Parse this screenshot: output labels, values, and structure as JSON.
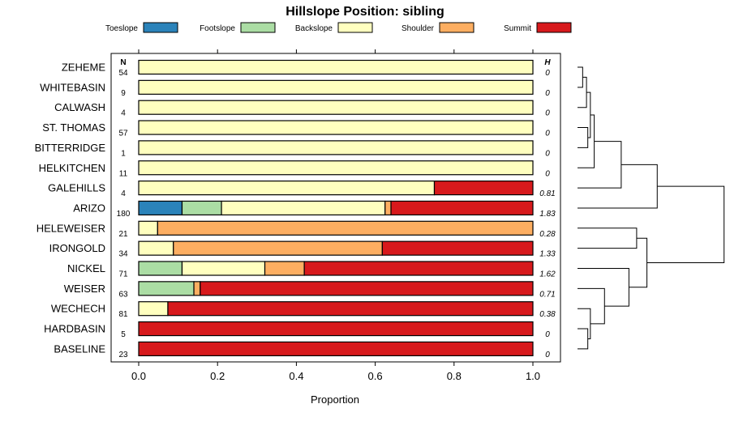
{
  "chart_data": {
    "type": "bar",
    "stacked": true,
    "orientation": "horizontal",
    "title": "Hillslope Position: sibling",
    "xlabel": "Proportion",
    "xlim": [
      0,
      1
    ],
    "xticks": [
      "0.0",
      "0.2",
      "0.4",
      "0.6",
      "0.8",
      "1.0"
    ],
    "n_header": "N",
    "h_header": "H",
    "legend": [
      {
        "name": "Toeslope",
        "color": "#2b83ba"
      },
      {
        "name": "Footslope",
        "color": "#abdda4"
      },
      {
        "name": "Backslope",
        "color": "#ffffbf"
      },
      {
        "name": "Shoulder",
        "color": "#fdae61"
      },
      {
        "name": "Summit",
        "color": "#d7191c"
      }
    ],
    "categories": [
      "ZEHEME",
      "WHITEBASIN",
      "CALWASH",
      "ST. THOMAS",
      "BITTERRIDGE",
      "HELKITCHEN",
      "GALEHILLS",
      "ARIZO",
      "HELEWEISER",
      "IRONGOLD",
      "NICKEL",
      "WEISER",
      "WECHECH",
      "HARDBASIN",
      "BASELINE"
    ],
    "n": [
      "54",
      "9",
      "4",
      "57",
      "1",
      "11",
      "4",
      "180",
      "21",
      "34",
      "71",
      "63",
      "81",
      "5",
      "23"
    ],
    "h": [
      "0",
      "0",
      "0",
      "0",
      "0",
      "0",
      "0.81",
      "1.83",
      "0.28",
      "1.33",
      "1.62",
      "0.71",
      "0.38",
      "0",
      "0"
    ],
    "series": [
      {
        "name": "Toeslope",
        "values": [
          0,
          0,
          0,
          0,
          0,
          0,
          0,
          0.11,
          0,
          0,
          0,
          0,
          0,
          0,
          0
        ]
      },
      {
        "name": "Footslope",
        "values": [
          0,
          0,
          0,
          0,
          0,
          0,
          0,
          0.1,
          0,
          0,
          0.11,
          0.14,
          0,
          0,
          0
        ]
      },
      {
        "name": "Backslope",
        "values": [
          1,
          1,
          1,
          1,
          1,
          1,
          0.75,
          0.415,
          0.048,
          0.088,
          0.21,
          0,
          0.074,
          0,
          0
        ]
      },
      {
        "name": "Shoulder",
        "values": [
          0,
          0,
          0,
          0,
          0,
          0,
          0,
          0.015,
          0.952,
          0.53,
          0.1,
          0.016,
          0,
          0,
          0
        ]
      },
      {
        "name": "Summit",
        "values": [
          0,
          0,
          0,
          0,
          0,
          0,
          0.25,
          0.36,
          0,
          0.382,
          0.58,
          0.844,
          0.926,
          1,
          1
        ]
      }
    ],
    "dendrogram": {
      "merges": [
        [
          -1,
          -2
        ],
        [
          -3,
          1
        ],
        [
          -4,
          -5
        ],
        [
          3,
          2
        ],
        [
          -6,
          4
        ],
        [
          -7,
          5
        ],
        [
          -8,
          6
        ],
        [
          -9,
          -10
        ],
        [
          -14,
          -15
        ],
        [
          -13,
          9
        ],
        [
          -12,
          10
        ],
        [
          -11,
          11
        ],
        [
          12,
          8
        ],
        [
          7,
          13
        ]
      ],
      "heights": [
        0.02,
        0.035,
        0.04,
        0.05,
        0.065,
        0.17,
        0.31,
        0.23,
        0.04,
        0.05,
        0.105,
        0.2,
        0.27,
        0.57
      ]
    }
  }
}
